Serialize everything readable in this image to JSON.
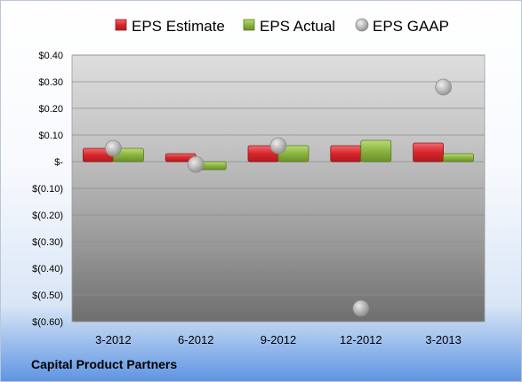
{
  "company": "Capital Product Partners",
  "chart_data": {
    "type": "bar",
    "title": "",
    "xlabel": "",
    "ylabel": "",
    "categories": [
      "3-2012",
      "6-2012",
      "9-2012",
      "12-2012",
      "3-2013"
    ],
    "series": [
      {
        "name": "EPS Estimate",
        "type": "bar",
        "color": "#d7262b",
        "values": [
          0.05,
          0.03,
          0.06,
          0.06,
          0.07
        ]
      },
      {
        "name": "EPS Actual",
        "type": "bar",
        "color": "#8ab43f",
        "values": [
          0.05,
          -0.03,
          0.06,
          0.08,
          0.03
        ]
      },
      {
        "name": "EPS GAAP",
        "type": "scatter",
        "color": "#a9a9a9",
        "values": [
          0.05,
          -0.01,
          0.06,
          -0.55,
          0.28
        ]
      }
    ],
    "ylim": [
      -0.6,
      0.4
    ],
    "yticks": [
      0.4,
      0.3,
      0.2,
      0.1,
      0,
      -0.1,
      -0.2,
      -0.3,
      -0.4,
      -0.5,
      -0.6
    ],
    "ytick_labels": [
      "$0.40",
      "$0.30",
      "$0.20",
      "$0.10",
      "$-",
      "$(0.10)",
      "$(0.20)",
      "$(0.30)",
      "$(0.40)",
      "$(0.50)",
      "$(0.60)"
    ],
    "grid": true,
    "legend_position": "top"
  }
}
